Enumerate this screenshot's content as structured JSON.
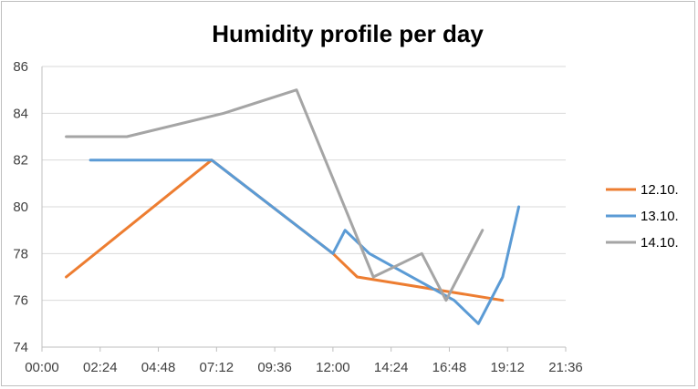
{
  "chart_data": {
    "type": "line",
    "title": "Humidity profile per day",
    "xlabel": "",
    "ylabel": "",
    "x_ticks": [
      "00:00",
      "02:24",
      "04:48",
      "07:12",
      "09:36",
      "12:00",
      "14:24",
      "16:48",
      "19:12",
      "21:36"
    ],
    "y_ticks": [
      "74",
      "76",
      "78",
      "80",
      "82",
      "84",
      "86"
    ],
    "xlim": [
      "00:00",
      "21:36"
    ],
    "ylim": [
      74,
      86
    ],
    "grid": "horizontal",
    "legend_position": "right",
    "series": [
      {
        "name": "12.10.",
        "color": "#ed7d31",
        "points": [
          [
            "01:00",
            77
          ],
          [
            "07:00",
            82
          ],
          [
            "12:00",
            78
          ],
          [
            "13:00",
            77
          ],
          [
            "19:00",
            76
          ]
        ]
      },
      {
        "name": "13.10.",
        "color": "#5b9bd5",
        "points": [
          [
            "02:00",
            82
          ],
          [
            "07:00",
            82
          ],
          [
            "12:00",
            78
          ],
          [
            "12:30",
            79
          ],
          [
            "13:30",
            78
          ],
          [
            "17:00",
            76
          ],
          [
            "18:00",
            75
          ],
          [
            "19:00",
            77
          ],
          [
            "19:40",
            80
          ]
        ]
      },
      {
        "name": "14.10.",
        "color": "#a5a5a5",
        "points": [
          [
            "01:00",
            83
          ],
          [
            "03:30",
            83
          ],
          [
            "07:30",
            84
          ],
          [
            "10:30",
            85
          ],
          [
            "13:40",
            77
          ],
          [
            "15:40",
            78
          ],
          [
            "16:40",
            76
          ],
          [
            "17:10",
            77
          ],
          [
            "18:10",
            79
          ]
        ]
      }
    ]
  }
}
